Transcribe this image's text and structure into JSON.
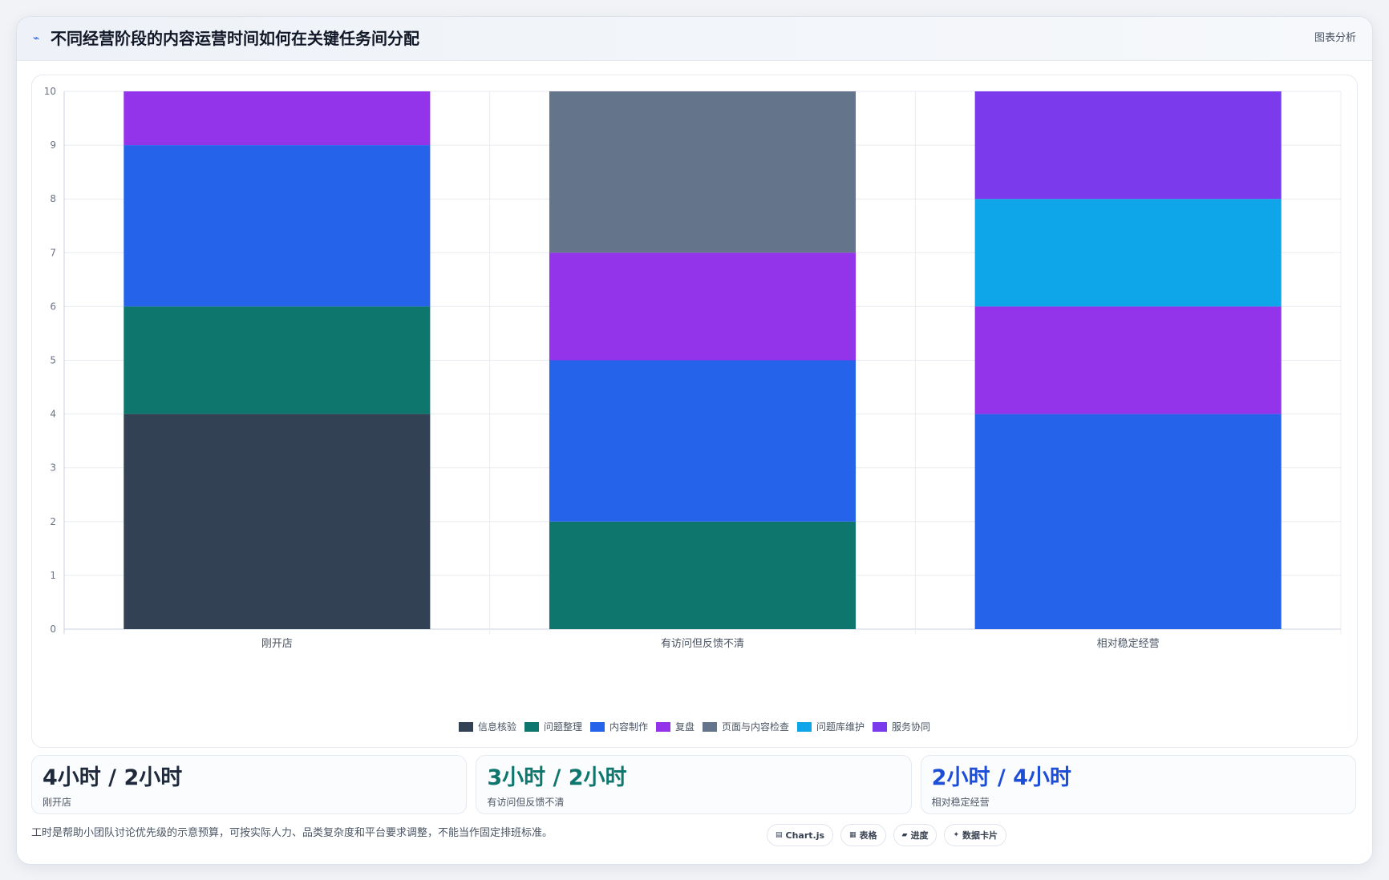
{
  "header": {
    "title": "不同经营阶段的内容运营时间如何在关键任务间分配",
    "icon": "trend-icon",
    "analysis_label": "图表分析"
  },
  "chart_data": {
    "type": "bar",
    "stacked": true,
    "categories": [
      "刚开店",
      "有访问但反馈不清",
      "相对稳定经营"
    ],
    "ylim": [
      0,
      10
    ],
    "yticks": [
      0,
      1,
      2,
      3,
      4,
      5,
      6,
      7,
      8,
      9,
      10
    ],
    "grid": true,
    "legend_position": "bottom",
    "series": [
      {
        "name": "信息核验",
        "color": "#334155",
        "values": [
          4,
          0,
          0
        ]
      },
      {
        "name": "问题整理",
        "color": "#0f766e",
        "values": [
          2,
          2,
          0
        ]
      },
      {
        "name": "内容制作",
        "color": "#2563eb",
        "values": [
          3,
          3,
          4
        ]
      },
      {
        "name": "复盘",
        "color": "#9333ea",
        "values": [
          1,
          2,
          2
        ]
      },
      {
        "name": "页面与内容检查",
        "color": "#64748b",
        "values": [
          0,
          3,
          0
        ]
      },
      {
        "name": "问题库维护",
        "color": "#0ea5e9",
        "values": [
          0,
          0,
          2
        ]
      },
      {
        "name": "服务协同",
        "color": "#7c3aed",
        "values": [
          0,
          0,
          2
        ]
      }
    ]
  },
  "stats": [
    {
      "value": "4小时 / 2小时",
      "label": "刚开店",
      "color": "#1e293b"
    },
    {
      "value": "3小时 / 2小时",
      "label": "有访问但反馈不清",
      "color": "#0f766e"
    },
    {
      "value": "2小时 / 4小时",
      "label": "相对稳定经营",
      "color": "#1d4ed8"
    }
  ],
  "footnote": "工时是帮助小团队讨论优先级的示意预算，可按实际人力、品类复杂度和平台要求调整，不能当作固定排班标准。",
  "tools": [
    {
      "label": "Chart.js",
      "icon": "chart-icon"
    },
    {
      "label": "表格",
      "icon": "table-icon"
    },
    {
      "label": "进度",
      "icon": "progress-icon"
    },
    {
      "label": "数据卡片",
      "icon": "sparkle-icon"
    }
  ]
}
